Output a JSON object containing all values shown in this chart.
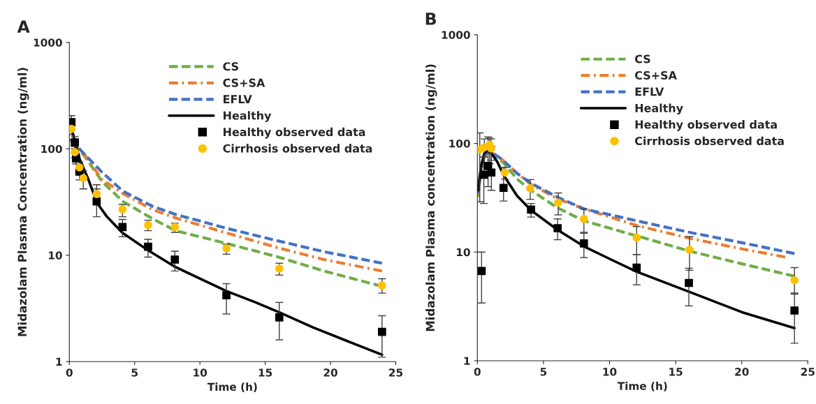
{
  "chart_data": [
    {
      "type": "line",
      "title": "A",
      "xlabel": "Time (h)",
      "ylabel": "Midazolam Plasma Concentration (ng/ml)",
      "log": "y",
      "xlim": [
        0,
        25
      ],
      "xticks": [
        0,
        5,
        10,
        15,
        20,
        25
      ],
      "ylim": [
        1,
        1000
      ],
      "yticks": [
        1,
        10,
        100,
        1000
      ],
      "grid": false,
      "legend": "top right",
      "series": [
        {
          "name": "CS",
          "line_style": "dashed",
          "color": "#70ad47",
          "x": [
            0.3,
            1.12,
            2.52,
            4.1,
            6.38,
            8.13,
            12.03,
            16.02,
            19.5,
            23.95
          ],
          "values": [
            112,
            87,
            49,
            32,
            22,
            17,
            12.9,
            9.6,
            7.1,
            5.1
          ]
        },
        {
          "name": "CS+SA",
          "line_style": "dashdot",
          "color": "#ed7d31",
          "x": [
            0.07,
            1.12,
            2.52,
            4.1,
            6.38,
            8.13,
            12.03,
            16.02,
            19.5,
            23.95
          ],
          "values": [
            124,
            90,
            51,
            38,
            26.8,
            22.4,
            16.2,
            11.7,
            9.1,
            7.1
          ]
        },
        {
          "name": "EFLV",
          "line_style": "dashed",
          "color": "#4472c4",
          "x": [
            0.07,
            1.12,
            2.52,
            4.1,
            6.38,
            8.13,
            12.03,
            16.02,
            19.5,
            23.95
          ],
          "values": [
            122,
            90,
            60,
            40,
            28.8,
            24.2,
            17.9,
            13.6,
            10.8,
            8.4
          ]
        },
        {
          "name": "Healthy",
          "line_style": "solid",
          "color": "#000000",
          "x": [
            0.16,
            0.77,
            1.47,
            2.12,
            2.88,
            4.07,
            6.03,
            8.08,
            9.9,
            12.03,
            14.27,
            16.08,
            18.65,
            21.28,
            23.95
          ],
          "values": [
            156,
            81,
            51,
            31,
            23,
            16.2,
            11.1,
            7.8,
            6.1,
            4.6,
            3.6,
            2.9,
            2.1,
            1.56,
            1.16
          ]
        },
        {
          "name": "Healthy observed data",
          "type": "scatter",
          "marker": "square",
          "color": "#000000",
          "x": [
            0.16,
            0.42,
            0.51,
            0.77,
            2.09,
            4.07,
            6.03,
            8.08,
            12.03,
            16.08,
            23.95
          ],
          "values": [
            178,
            115,
            81,
            61,
            32,
            18.4,
            12,
            9.1,
            4.2,
            2.6,
            1.9
          ],
          "errors": [
            [
              151,
              205
            ],
            [
              100,
              130
            ],
            [
              72,
              90
            ],
            [
              51,
              71
            ],
            [
              23,
              46
            ],
            [
              14.9,
              21.7
            ],
            [
              9.6,
              14.1
            ],
            [
              7.1,
              10.9
            ],
            [
              2.8,
              5.4
            ],
            [
              1.6,
              3.6
            ],
            [
              1.1,
              2.7
            ]
          ]
        },
        {
          "name": "Cirrhosis observed data",
          "type": "scatter",
          "marker": "circle",
          "color": "#ffc000",
          "x": [
            0.16,
            0.42,
            0.77,
            1.07,
            2.09,
            4.07,
            6.03,
            8.08,
            12.03,
            16.08,
            23.95
          ],
          "values": [
            154,
            93,
            67,
            53,
            37.5,
            27,
            19.2,
            18.4,
            11.6,
            7.5,
            5.2
          ],
          "errors": [
            [
              135,
              175
            ],
            [
              82,
              105
            ],
            [
              60,
              75
            ],
            [
              42,
              62
            ],
            [
              33,
              42
            ],
            [
              23,
              30
            ],
            [
              17,
              21.3
            ],
            [
              16.4,
              20
            ],
            [
              10.2,
              12.7
            ],
            [
              6.5,
              8.4
            ],
            [
              4.4,
              6.0
            ]
          ]
        }
      ]
    },
    {
      "type": "line",
      "title": "B",
      "xlabel": "Time (h)",
      "ylabel": "Midazolam Plasma concentration (ng/ml)",
      "log": "y",
      "xlim": [
        0,
        25
      ],
      "xticks": [
        0,
        5,
        10,
        15,
        20,
        25
      ],
      "ylim": [
        1,
        1000
      ],
      "yticks": [
        1,
        10,
        100,
        1000
      ],
      "grid": false,
      "legend": "top right",
      "series": [
        {
          "name": "CS",
          "line_style": "dashed",
          "color": "#70ad47",
          "x": [
            0.05,
            0.35,
            0.71,
            1.23,
            1.94,
            3.0,
            4.06,
            6.07,
            8.06,
            12.05,
            16.05,
            20.02,
            23.99
          ],
          "values": [
            32,
            67,
            83,
            79,
            67,
            47,
            37,
            25.5,
            19.4,
            14.1,
            10.2,
            7.8,
            6.0
          ]
        },
        {
          "name": "CS+SA",
          "line_style": "dashdot",
          "color": "#ed7d31",
          "x": [
            0.05,
            0.35,
            0.71,
            1.23,
            1.94,
            3.0,
            4.06,
            6.07,
            8.06,
            12.05,
            16.05,
            20.02,
            23.29
          ],
          "values": [
            33,
            67,
            83,
            81,
            70,
            53,
            42,
            31,
            25,
            17.6,
            13.4,
            10.7,
            9.0
          ]
        },
        {
          "name": "EFLV",
          "line_style": "dashed",
          "color": "#4472c4",
          "x": [
            0.05,
            0.35,
            0.71,
            1.23,
            1.94,
            3.0,
            4.06,
            6.07,
            8.06,
            12.05,
            16.05,
            20.02,
            23.99
          ],
          "values": [
            35,
            67,
            83,
            81,
            70,
            53,
            43,
            32,
            25,
            19.4,
            15.2,
            12.2,
            9.7
          ]
        },
        {
          "name": "Healthy",
          "line_style": "solid",
          "color": "#000000",
          "x": [
            0.05,
            0.26,
            0.53,
            0.74,
            1.06,
            1.5,
            2.03,
            3.0,
            4.06,
            6.07,
            8.06,
            10.06,
            12.05,
            16.05,
            20.02,
            23.99
          ],
          "values": [
            37,
            60,
            81,
            86,
            81,
            68,
            50,
            33,
            24.3,
            16,
            11.3,
            8.6,
            6.6,
            4.3,
            2.8,
            2.0
          ]
        },
        {
          "name": "Healthy observed data",
          "type": "scatter",
          "marker": "square",
          "color": "#000000",
          "x": [
            0.32,
            0.49,
            0.81,
            1.06,
            1.98,
            4.06,
            6.07,
            8.06,
            12.05,
            16.0,
            23.99
          ],
          "values": [
            6.7,
            51.5,
            62,
            54,
            39,
            24.6,
            16.6,
            12,
            7.2,
            5.2,
            2.9
          ],
          "errors": [
            [
              3.4,
              10
            ],
            [
              28,
              75
            ],
            [
              40,
              115
            ],
            [
              37,
              94
            ],
            [
              29.5,
              60
            ],
            [
              21,
              28
            ],
            [
              13,
              20.2
            ],
            [
              8.9,
              15.2
            ],
            [
              5,
              9.5
            ],
            [
              3.2,
              7.1
            ],
            [
              1.45,
              4.2
            ]
          ]
        },
        {
          "name": "Cirrhosis observed data",
          "type": "scatter",
          "marker": "circle",
          "color": "#ffc000",
          "x": [
            0.18,
            0.53,
            0.92,
            1.04,
            2.08,
            4.0,
            6.12,
            8.06,
            12.05,
            16.05,
            23.99
          ],
          "values": [
            88,
            92,
            97,
            90,
            54,
            38.7,
            28.5,
            20.2,
            13.6,
            10.5,
            5.5
          ],
          "errors": [
            [
              29,
              125
            ],
            [
              60,
              110
            ],
            [
              65,
              112
            ],
            [
              70,
              110
            ],
            [
              47,
              60
            ],
            [
              30.6,
              46.5
            ],
            [
              22,
              35
            ],
            [
              14.9,
              24.9
            ],
            [
              9.5,
              17.2
            ],
            [
              6.8,
              13.9
            ],
            [
              4.1,
              7.2
            ]
          ]
        }
      ]
    }
  ]
}
